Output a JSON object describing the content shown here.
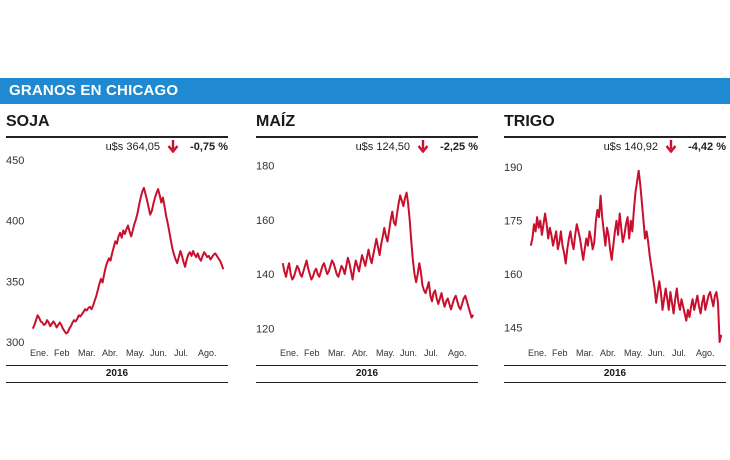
{
  "header": {
    "title": "GRANOS EN CHICAGO"
  },
  "colors": {
    "banner": "#1f8ad1",
    "line": "#c8102e",
    "arrow": "#c8102e"
  },
  "icons": {
    "change": "down-arrow-icon"
  },
  "panels": [
    {
      "title": "SOJA",
      "price": "u$s 364,05",
      "change": "-0,75 %",
      "year": "2016"
    },
    {
      "title": "MAÍZ",
      "price": "u$s 124,50",
      "change": "-2,25 %",
      "year": "2016"
    },
    {
      "title": "TRIGO",
      "price": "u$s 140,92",
      "change": "-4,42 %",
      "year": "2016"
    }
  ],
  "chart_data": [
    {
      "type": "line",
      "title": "SOJA",
      "x_ticks": [
        "Ene.",
        "Feb",
        "Mar.",
        "Abr.",
        "May.",
        "Jun.",
        "Jul.",
        "Ago."
      ],
      "y_ticks": [
        300,
        350,
        400,
        450
      ],
      "ylim": [
        300,
        450
      ],
      "x": [
        1,
        3,
        5,
        7,
        9,
        11,
        13,
        15,
        17,
        19,
        21,
        23,
        25,
        27,
        29,
        31,
        33,
        35,
        37,
        39,
        41,
        43,
        45,
        47,
        49,
        51,
        53,
        55,
        57,
        59,
        61,
        63,
        65,
        67,
        69,
        71,
        73,
        75,
        77,
        79,
        81,
        83,
        85,
        87,
        89,
        91,
        93,
        95,
        97,
        99,
        101,
        103,
        105,
        107,
        109,
        111,
        113,
        115,
        117,
        119,
        121,
        123,
        125,
        127,
        129,
        131,
        133,
        135,
        137,
        139,
        141,
        143,
        145,
        147,
        149,
        151,
        153,
        155,
        157,
        159,
        161,
        163,
        165,
        167,
        169,
        171,
        173,
        175,
        177,
        179,
        181,
        183,
        185,
        187,
        189,
        191,
        193,
        195,
        197,
        199,
        201,
        203,
        205,
        207,
        209,
        211,
        213,
        215,
        217,
        219,
        221,
        223,
        225,
        227,
        229,
        231,
        233,
        235,
        237,
        239,
        241
      ],
      "y": [
        311,
        314,
        318,
        322,
        320,
        317,
        316,
        314,
        315,
        318,
        316,
        313,
        315,
        317,
        315,
        312,
        314,
        316,
        314,
        311,
        309,
        307,
        308,
        311,
        313,
        316,
        318,
        317,
        319,
        322,
        321,
        323,
        325,
        327,
        326,
        328,
        329,
        327,
        330,
        334,
        338,
        343,
        348,
        352,
        349,
        356,
        362,
        366,
        369,
        367,
        373,
        378,
        383,
        381,
        387,
        390,
        386,
        392,
        389,
        393,
        396,
        391,
        387,
        392,
        397,
        401,
        406,
        413,
        419,
        424,
        427,
        422,
        417,
        411,
        405,
        408,
        414,
        419,
        423,
        426,
        421,
        415,
        419,
        412,
        404,
        398,
        391,
        384,
        377,
        372,
        368,
        365,
        370,
        375,
        371,
        366,
        362,
        368,
        372,
        374,
        371,
        375,
        372,
        370,
        373,
        369,
        367,
        371,
        374,
        372,
        370,
        371,
        368,
        370,
        372,
        373,
        371,
        369,
        367,
        364,
        360
      ],
      "color": "#c8102e"
    },
    {
      "type": "line",
      "title": "MAÍZ",
      "x_ticks": [
        "Ene.",
        "Feb",
        "Mar.",
        "Abr.",
        "May.",
        "Jun.",
        "Jul.",
        "Ago."
      ],
      "y_ticks": [
        120,
        140,
        160,
        180
      ],
      "ylim": [
        115,
        182
      ],
      "x": [
        1,
        3,
        5,
        7,
        9,
        11,
        13,
        15,
        17,
        19,
        21,
        23,
        25,
        27,
        29,
        31,
        33,
        35,
        37,
        39,
        41,
        43,
        45,
        47,
        49,
        51,
        53,
        55,
        57,
        59,
        61,
        63,
        65,
        67,
        69,
        71,
        73,
        75,
        77,
        79,
        81,
        83,
        85,
        87,
        89,
        91,
        93,
        95,
        97,
        99,
        101,
        103,
        105,
        107,
        109,
        111,
        113,
        115,
        117,
        119,
        121,
        123,
        125,
        127,
        129,
        131,
        133,
        135,
        137,
        139,
        141,
        143,
        145,
        147,
        149,
        151,
        153,
        155,
        157,
        159,
        161,
        163,
        165,
        167,
        169,
        171,
        173,
        175,
        177,
        179,
        181,
        183,
        185,
        187,
        189,
        191,
        193,
        195,
        197,
        199,
        201,
        203,
        205,
        207,
        209,
        211,
        213,
        215,
        217,
        219,
        221,
        223,
        225,
        227,
        229,
        231,
        233,
        235,
        237,
        239,
        241
      ],
      "y": [
        144,
        141,
        139,
        142,
        144,
        140,
        138,
        139,
        141,
        143,
        142,
        140,
        139,
        141,
        143,
        145,
        142,
        140,
        138,
        139,
        141,
        142,
        140,
        139,
        141,
        143,
        144,
        142,
        140,
        141,
        143,
        145,
        144,
        142,
        140,
        139,
        141,
        143,
        142,
        140,
        143,
        146,
        144,
        141,
        138,
        142,
        145,
        143,
        141,
        144,
        147,
        145,
        143,
        146,
        149,
        146,
        144,
        147,
        150,
        153,
        150,
        147,
        151,
        154,
        157,
        154,
        152,
        156,
        160,
        163,
        159,
        158,
        162,
        166,
        169,
        167,
        165,
        168,
        170,
        166,
        160,
        152,
        145,
        140,
        137,
        140,
        144,
        141,
        136,
        134,
        133,
        135,
        137,
        132,
        130,
        133,
        134,
        131,
        129,
        131,
        133,
        130,
        128,
        130,
        131,
        129,
        127,
        129,
        131,
        132,
        130,
        128,
        127,
        129,
        131,
        132,
        130,
        128,
        126,
        124,
        125
      ],
      "color": "#c8102e"
    },
    {
      "type": "line",
      "title": "TRIGO",
      "x_ticks": [
        "Ene.",
        "Feb",
        "Mar.",
        "Abr.",
        "May.",
        "Jun.",
        "Jul.",
        "Ago."
      ],
      "y_ticks": [
        145,
        160,
        175,
        190
      ],
      "ylim": [
        141,
        192
      ],
      "x": [
        1,
        3,
        5,
        7,
        9,
        11,
        13,
        15,
        17,
        19,
        21,
        23,
        25,
        27,
        29,
        31,
        33,
        35,
        37,
        39,
        41,
        43,
        45,
        47,
        49,
        51,
        53,
        55,
        57,
        59,
        61,
        63,
        65,
        67,
        69,
        71,
        73,
        75,
        77,
        79,
        81,
        83,
        85,
        87,
        89,
        91,
        93,
        95,
        97,
        99,
        101,
        103,
        105,
        107,
        109,
        111,
        113,
        115,
        117,
        119,
        121,
        123,
        125,
        127,
        129,
        131,
        133,
        135,
        137,
        139,
        141,
        143,
        145,
        147,
        149,
        151,
        153,
        155,
        157,
        159,
        161,
        163,
        165,
        167,
        169,
        171,
        173,
        175,
        177,
        179,
        181,
        183,
        185,
        187,
        189,
        191,
        193,
        195,
        197,
        199,
        201,
        203,
        205,
        207,
        209,
        211,
        213,
        215,
        217,
        219,
        221,
        223,
        225,
        227,
        229,
        231,
        233,
        235,
        237,
        239,
        241
      ],
      "y": [
        168,
        170,
        174,
        172,
        176,
        173,
        175,
        171,
        174,
        177,
        174,
        170,
        173,
        171,
        168,
        170,
        172,
        167,
        169,
        172,
        168,
        166,
        163,
        167,
        170,
        172,
        169,
        167,
        171,
        174,
        172,
        170,
        167,
        164,
        167,
        170,
        168,
        172,
        170,
        167,
        169,
        175,
        178,
        176,
        182,
        176,
        172,
        168,
        173,
        171,
        167,
        164,
        168,
        172,
        175,
        171,
        177,
        173,
        169,
        171,
        174,
        176,
        170,
        175,
        172,
        178,
        183,
        186,
        189,
        185,
        180,
        175,
        170,
        172,
        169,
        165,
        162,
        159,
        156,
        152,
        155,
        158,
        155,
        150,
        153,
        156,
        153,
        150,
        155,
        152,
        149,
        153,
        156,
        152,
        150,
        153,
        151,
        149,
        147,
        150,
        148,
        151,
        153,
        150,
        152,
        154,
        151,
        149,
        152,
        154,
        150,
        152,
        154,
        155,
        153,
        151,
        154,
        155,
        152,
        141,
        143
      ],
      "color": "#c8102e"
    }
  ]
}
